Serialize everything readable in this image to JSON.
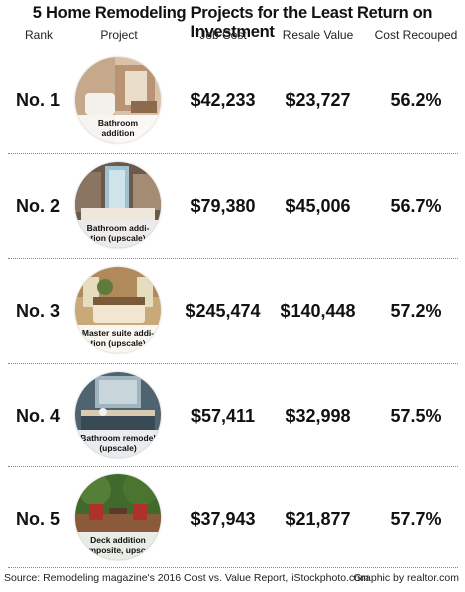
{
  "title": "5 Home Remodeling Projects for the Least Return on Investment",
  "headers": {
    "rank": "Rank",
    "project": "Project",
    "job_cost": "Job Cost",
    "resale_value": "Resale Value",
    "cost_recouped": "Cost Recouped"
  },
  "rows": [
    {
      "rank": "No. 1",
      "project_line1": "Bathroom",
      "project_line2": "addition",
      "job_cost": "$42,233",
      "resale_value": "$23,727",
      "cost_recouped": "56.2%"
    },
    {
      "rank": "No. 2",
      "project_line1": "Bathroom addi-",
      "project_line2": "tion (upscale)",
      "job_cost": "$79,380",
      "resale_value": "$45,006",
      "cost_recouped": "56.7%"
    },
    {
      "rank": "No. 3",
      "project_line1": "Master suite addi-",
      "project_line2": "tion (upscale)",
      "job_cost": "$245,474",
      "resale_value": "$140,448",
      "cost_recouped": "57.2%"
    },
    {
      "rank": "No. 4",
      "project_line1": "Bathroom remodel",
      "project_line2": "(upscale)",
      "job_cost": "$57,411",
      "resale_value": "$32,998",
      "cost_recouped": "57.5%"
    },
    {
      "rank": "No. 5",
      "project_line1": "Deck addition",
      "project_line2": "(composite, upscale)",
      "job_cost": "$37,943",
      "resale_value": "$21,877",
      "cost_recouped": "57.7%"
    }
  ],
  "footer": {
    "source": "Source: Remodeling magazine's 2016 Cost vs. Value Report, iStockphoto.com",
    "credit": "Graphic by realtor.com"
  }
}
